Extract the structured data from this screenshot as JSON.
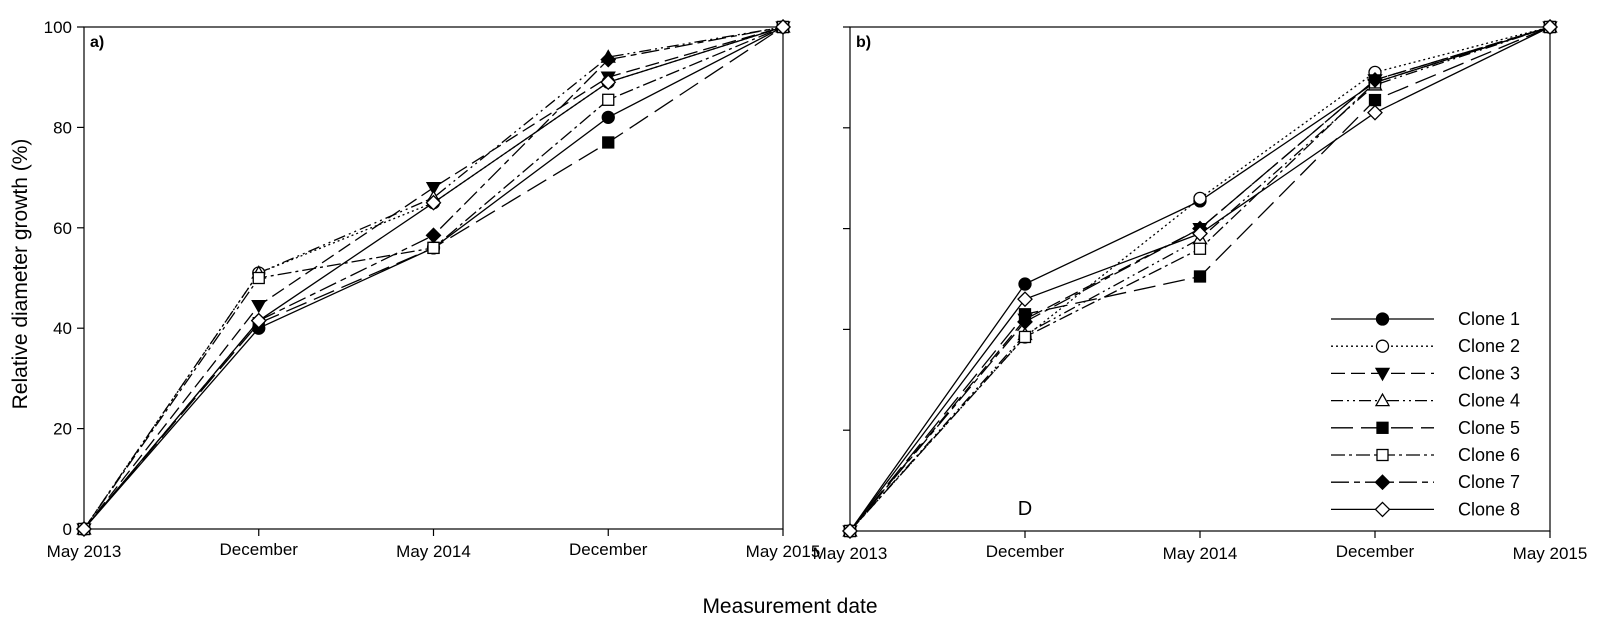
{
  "figure": {
    "xlabel": "Measurement date",
    "ylabel": "Relative diameter growth (%)"
  },
  "chart_data": [
    {
      "type": "line",
      "panel_label": "a)",
      "categories": [
        "May 2013",
        "December",
        "May 2014",
        "December",
        "May 2015"
      ],
      "ylim": [
        0,
        100
      ],
      "yticks": [
        0,
        20,
        40,
        60,
        80,
        100
      ],
      "ytick_labels_visible": true,
      "grid": false,
      "series": [
        {
          "name": "Clone 1",
          "values": [
            0,
            40,
            56,
            82,
            100
          ]
        },
        {
          "name": "Clone 2",
          "values": [
            0,
            51,
            65,
            89,
            100
          ]
        },
        {
          "name": "Clone 3",
          "values": [
            0,
            44.5,
            68,
            90,
            100
          ]
        },
        {
          "name": "Clone 4",
          "values": [
            0,
            51,
            66,
            94,
            100
          ]
        },
        {
          "name": "Clone 5",
          "values": [
            0,
            41,
            56,
            77,
            100
          ]
        },
        {
          "name": "Clone 6",
          "values": [
            0,
            50,
            56,
            85.5,
            100
          ]
        },
        {
          "name": "Clone 7",
          "values": [
            0,
            41.5,
            58.5,
            93.5,
            100
          ]
        },
        {
          "name": "Clone 8",
          "values": [
            0,
            41.5,
            65,
            89,
            100
          ]
        }
      ]
    },
    {
      "type": "line",
      "panel_label": "b)",
      "annotation": "D",
      "categories": [
        "May 2013",
        "December",
        "May 2014",
        "December",
        "May 2015"
      ],
      "ylim": [
        0,
        100
      ],
      "yticks": [
        0,
        20,
        40,
        60,
        80,
        100
      ],
      "ytick_labels_visible": false,
      "grid": false,
      "legend_position": "bottom-right",
      "series": [
        {
          "name": "Clone 1",
          "values": [
            0,
            49,
            65.5,
            89,
            100
          ]
        },
        {
          "name": "Clone 2",
          "values": [
            0,
            38.5,
            66,
            91,
            100
          ]
        },
        {
          "name": "Clone 3",
          "values": [
            0,
            42,
            60,
            89.5,
            100
          ]
        },
        {
          "name": "Clone 4",
          "values": [
            0,
            39,
            58,
            88.5,
            100
          ]
        },
        {
          "name": "Clone 5",
          "values": [
            0,
            43,
            50.5,
            85.5,
            100
          ]
        },
        {
          "name": "Clone 6",
          "values": [
            0,
            38.5,
            56,
            89,
            100
          ]
        },
        {
          "name": "Clone 7",
          "values": [
            0,
            41.5,
            60,
            89.5,
            100
          ]
        },
        {
          "name": "Clone 8",
          "values": [
            0,
            46,
            59,
            83,
            100
          ]
        }
      ]
    }
  ],
  "series_style": [
    {
      "dash": "",
      "marker": "circle",
      "fill": "#000000"
    },
    {
      "dash": "2,3",
      "marker": "circle",
      "fill": "#ffffff"
    },
    {
      "dash": "14,6",
      "marker": "triangle-down",
      "fill": "#000000"
    },
    {
      "dash": "12,4,2,4,2,4",
      "marker": "triangle-up",
      "fill": "#ffffff"
    },
    {
      "dash": "22,8",
      "marker": "square",
      "fill": "#000000"
    },
    {
      "dash": "14,4,3,4",
      "marker": "square",
      "fill": "#ffffff"
    },
    {
      "dash": "18,5,6,5",
      "marker": "diamond",
      "fill": "#000000"
    },
    {
      "dash": "",
      "marker": "diamond",
      "fill": "#ffffff"
    }
  ]
}
